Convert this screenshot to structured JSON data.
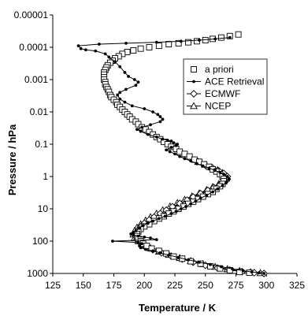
{
  "chart_data": {
    "type": "line",
    "xlabel": "Temperature / K",
    "ylabel": "Pressure / hPa",
    "xlim": [
      125,
      325
    ],
    "ylim": [
      1000,
      1e-05
    ],
    "y_scale": "log",
    "grid": false,
    "legend_position": "top-right",
    "x_ticks": [
      "125",
      "150",
      "175",
      "200",
      "225",
      "250",
      "275",
      "300",
      "325"
    ],
    "y_ticks": [
      "0.00001",
      "0.0001",
      "0.001",
      "0.01",
      "0.1",
      "1",
      "10",
      "100",
      "1000"
    ],
    "series": [
      {
        "name": "a priori",
        "marker": "square",
        "points": [
          [
            277,
            4e-05
          ],
          [
            270,
            4.5e-05
          ],
          [
            263,
            5e-05
          ],
          [
            256,
            5.5e-05
          ],
          [
            250,
            6e-05
          ],
          [
            243,
            6.5e-05
          ],
          [
            236,
            7e-05
          ],
          [
            228,
            7.5e-05
          ],
          [
            220,
            8e-05
          ],
          [
            212,
            9e-05
          ],
          [
            204,
            0.0001
          ],
          [
            197,
            0.00011
          ],
          [
            191,
            0.000125
          ],
          [
            186,
            0.00014
          ],
          [
            182,
            0.00016
          ],
          [
            179,
            0.00019
          ],
          [
            176,
            0.00022
          ],
          [
            174,
            0.00026
          ],
          [
            172,
            0.0003
          ],
          [
            170,
            0.00036
          ],
          [
            169,
            0.00042
          ],
          [
            168,
            0.0005
          ],
          [
            167,
            0.0006
          ],
          [
            167,
            0.0007
          ],
          [
            167,
            0.00085
          ],
          [
            167,
            0.001
          ],
          [
            168,
            0.0012
          ],
          [
            168,
            0.0014
          ],
          [
            169,
            0.0017
          ],
          [
            170,
            0.002
          ],
          [
            171,
            0.0024
          ],
          [
            172,
            0.003
          ],
          [
            173,
            0.0035
          ],
          [
            175,
            0.0042
          ],
          [
            177,
            0.005
          ],
          [
            178,
            0.006
          ],
          [
            180,
            0.007
          ],
          [
            182,
            0.0085
          ],
          [
            184,
            0.01
          ],
          [
            186,
            0.012
          ],
          [
            188,
            0.014
          ],
          [
            190,
            0.017
          ],
          [
            193,
            0.02
          ],
          [
            195,
            0.024
          ],
          [
            198,
            0.03
          ],
          [
            201,
            0.035
          ],
          [
            204,
            0.042
          ],
          [
            207,
            0.05
          ],
          [
            210,
            0.06
          ],
          [
            213,
            0.07
          ],
          [
            216,
            0.085
          ],
          [
            219,
            0.1
          ],
          [
            222,
            0.12
          ],
          [
            226,
            0.14
          ],
          [
            229,
            0.17
          ],
          [
            233,
            0.2
          ],
          [
            237,
            0.24
          ],
          [
            241,
            0.3
          ],
          [
            245,
            0.35
          ],
          [
            249,
            0.42
          ],
          [
            253,
            0.5
          ],
          [
            256,
            0.6
          ],
          [
            259,
            0.7
          ],
          [
            262,
            0.85
          ],
          [
            264,
            1
          ],
          [
            265,
            1.2
          ],
          [
            265,
            1.4
          ],
          [
            264,
            1.7
          ],
          [
            262,
            2
          ],
          [
            259,
            2.4
          ],
          [
            256,
            3
          ],
          [
            252,
            3.5
          ],
          [
            248,
            4.2
          ],
          [
            244,
            5
          ],
          [
            240,
            6
          ],
          [
            236,
            7
          ],
          [
            232,
            8.5
          ],
          [
            228,
            10
          ],
          [
            224,
            12
          ],
          [
            220,
            14
          ],
          [
            216,
            17
          ],
          [
            212,
            20
          ],
          [
            208,
            24
          ],
          [
            204,
            30
          ],
          [
            200,
            35
          ],
          [
            197,
            42
          ],
          [
            195,
            50
          ],
          [
            194,
            60
          ],
          [
            194,
            70
          ],
          [
            195,
            85
          ],
          [
            197,
            100
          ],
          [
            199,
            120
          ],
          [
            202,
            140
          ],
          [
            206,
            170
          ],
          [
            212,
            200
          ],
          [
            218,
            240
          ],
          [
            224,
            300
          ],
          [
            231,
            350
          ],
          [
            238,
            420
          ],
          [
            246,
            500
          ],
          [
            254,
            600
          ],
          [
            262,
            700
          ],
          [
            270,
            800
          ],
          [
            278,
            900
          ],
          [
            286,
            950
          ]
        ]
      },
      {
        "name": "ACE Retrieval",
        "marker": "dot",
        "points": [
          [
            270,
            5e-05
          ],
          [
            258,
            5.5e-05
          ],
          [
            245,
            6e-05
          ],
          [
            230,
            6.5e-05
          ],
          [
            210,
            7e-05
          ],
          [
            185,
            7.5e-05
          ],
          [
            163,
            8e-05
          ],
          [
            146,
            9e-05
          ],
          [
            148,
            0.00011
          ],
          [
            152,
            0.00012
          ],
          [
            160,
            0.00013
          ],
          [
            168,
            0.00016
          ],
          [
            171,
            0.0002
          ],
          [
            176,
            0.00028
          ],
          [
            180,
            0.0004
          ],
          [
            184,
            0.0006
          ],
          [
            187,
            0.0008
          ],
          [
            192,
            0.001
          ],
          [
            195,
            0.0012
          ],
          [
            193,
            0.0015
          ],
          [
            185,
            0.002
          ],
          [
            180,
            0.0025
          ],
          [
            178,
            0.003
          ],
          [
            180,
            0.004
          ],
          [
            184,
            0.005
          ],
          [
            190,
            0.0065
          ],
          [
            200,
            0.008
          ],
          [
            207,
            0.01
          ],
          [
            211,
            0.012
          ],
          [
            213,
            0.014
          ],
          [
            215,
            0.017
          ],
          [
            213,
            0.02
          ],
          [
            205,
            0.025
          ],
          [
            198,
            0.03
          ],
          [
            194,
            0.035
          ],
          [
            197,
            0.04
          ],
          [
            203,
            0.05
          ],
          [
            210,
            0.06
          ],
          [
            215,
            0.07
          ],
          [
            219,
            0.075
          ],
          [
            222,
            0.08
          ],
          [
            224,
            0.09
          ],
          [
            227,
            0.1
          ],
          [
            226,
            0.11
          ],
          [
            222,
            0.125
          ],
          [
            218,
            0.15
          ],
          [
            221,
            0.17
          ],
          [
            225,
            0.2
          ],
          [
            229,
            0.24
          ],
          [
            233,
            0.28
          ],
          [
            238,
            0.33
          ],
          [
            243,
            0.4
          ],
          [
            248,
            0.47
          ],
          [
            253,
            0.55
          ],
          [
            258,
            0.65
          ],
          [
            262,
            0.75
          ],
          [
            265,
            0.85
          ],
          [
            268,
            1
          ],
          [
            269,
            1.2
          ],
          [
            267,
            1.5
          ],
          [
            264,
            1.9
          ],
          [
            260,
            2.4
          ],
          [
            256,
            3
          ],
          [
            251,
            3.8
          ],
          [
            246,
            4.7
          ],
          [
            242,
            5.8
          ],
          [
            238,
            7
          ],
          [
            234,
            8.5
          ],
          [
            230,
            10
          ],
          [
            226,
            12
          ],
          [
            222,
            14
          ],
          [
            217,
            17
          ],
          [
            212,
            20
          ],
          [
            207,
            24
          ],
          [
            203,
            28
          ],
          [
            199,
            33
          ],
          [
            196,
            40
          ],
          [
            193,
            48
          ],
          [
            191,
            55
          ],
          [
            189,
            60
          ],
          [
            191,
            65
          ],
          [
            195,
            70
          ],
          [
            200,
            75
          ],
          [
            205,
            80
          ],
          [
            210,
            90
          ],
          [
            174,
            100
          ],
          [
            195,
            110
          ],
          [
            198,
            120
          ],
          [
            196,
            140
          ],
          [
            197,
            160
          ],
          [
            201,
            180
          ],
          [
            207,
            200
          ],
          [
            213,
            230
          ],
          [
            220,
            270
          ],
          [
            228,
            320
          ],
          [
            236,
            380
          ],
          [
            245,
            450
          ],
          [
            254,
            530
          ],
          [
            263,
            620
          ],
          [
            272,
            720
          ],
          [
            281,
            820
          ],
          [
            288,
            900
          ],
          [
            294,
            950
          ],
          [
            298,
            1000
          ]
        ]
      },
      {
        "name": "ECMWF",
        "marker": "diamond",
        "points": [
          [
            250,
            0.45
          ],
          [
            256,
            0.55
          ],
          [
            261,
            0.67
          ],
          [
            265,
            0.8
          ],
          [
            268,
            1
          ],
          [
            268,
            1.2
          ],
          [
            266,
            1.45
          ],
          [
            262,
            1.75
          ],
          [
            257,
            2.2
          ],
          [
            252,
            2.7
          ],
          [
            246,
            3.4
          ],
          [
            240,
            4.3
          ],
          [
            235,
            5.4
          ],
          [
            229,
            6.8
          ],
          [
            223,
            8.6
          ],
          [
            218,
            11
          ],
          [
            213,
            14
          ],
          [
            208,
            18
          ],
          [
            204,
            22
          ],
          [
            200,
            28
          ],
          [
            197,
            36
          ],
          [
            195,
            45
          ],
          [
            193,
            57
          ],
          [
            193,
            72
          ],
          [
            194,
            90
          ],
          [
            197,
            115
          ],
          [
            201,
            145
          ],
          [
            207,
            185
          ],
          [
            214,
            230
          ],
          [
            222,
            290
          ],
          [
            231,
            360
          ],
          [
            240,
            450
          ],
          [
            250,
            560
          ],
          [
            260,
            680
          ],
          [
            270,
            790
          ],
          [
            280,
            880
          ],
          [
            290,
            950
          ],
          [
            298,
            1000
          ]
        ]
      },
      {
        "name": "NCEP",
        "marker": "triangle",
        "points": [
          [
            244,
            0.35
          ],
          [
            250,
            0.43
          ],
          [
            255,
            0.52
          ],
          [
            260,
            0.63
          ],
          [
            264,
            0.78
          ],
          [
            267,
            0.95
          ],
          [
            267,
            1.15
          ],
          [
            265,
            1.4
          ],
          [
            261,
            1.7
          ],
          [
            256,
            2.1
          ],
          [
            251,
            2.6
          ],
          [
            245,
            3.3
          ],
          [
            239,
            4.1
          ],
          [
            233,
            5.2
          ],
          [
            227,
            6.6
          ],
          [
            221,
            8.4
          ],
          [
            215,
            11
          ],
          [
            210,
            14
          ],
          [
            205,
            18
          ],
          [
            201,
            23
          ],
          [
            197,
            30
          ],
          [
            194,
            38
          ],
          [
            192,
            48
          ],
          [
            191,
            62
          ],
          [
            192,
            80
          ],
          [
            195,
            100
          ],
          [
            199,
            130
          ],
          [
            205,
            165
          ],
          [
            212,
            210
          ],
          [
            220,
            265
          ],
          [
            229,
            330
          ],
          [
            238,
            410
          ],
          [
            248,
            510
          ],
          [
            258,
            620
          ],
          [
            268,
            730
          ],
          [
            278,
            830
          ],
          [
            287,
            910
          ],
          [
            295,
            970
          ]
        ]
      }
    ]
  }
}
